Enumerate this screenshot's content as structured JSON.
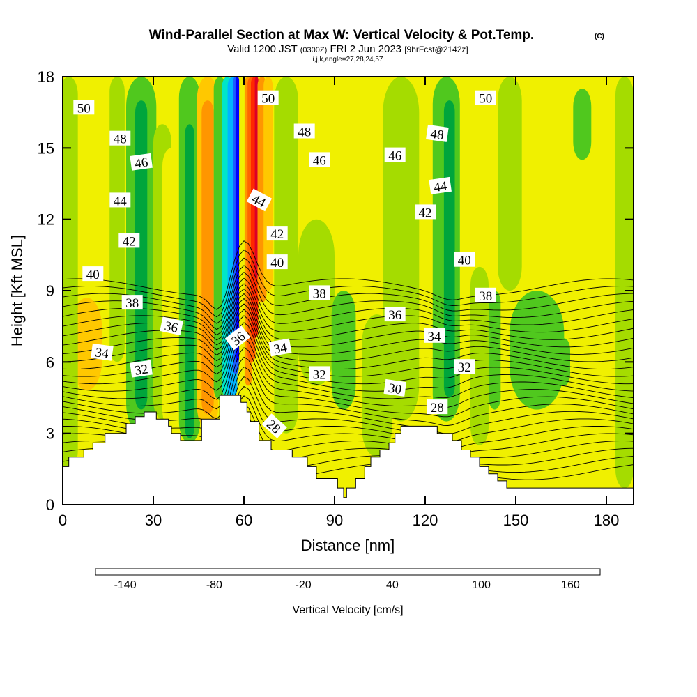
{
  "chart_data": {
    "type": "heatmap",
    "title": "Wind-Parallel Section at Max W: Vertical Velocity & Pot.Temp.",
    "title_mark": "(C)",
    "subtitle_parts": [
      "Valid 1200 JST",
      "(0300Z)",
      "FRI 2 Jun 2023",
      "[9hrFcst@2142z]"
    ],
    "subtitle2": "i,j,k,angle=27,28,24,57",
    "xlabel": "Distance [nm]",
    "ylabel": "Height [Kft MSL]",
    "xlim": [
      0,
      189
    ],
    "ylim": [
      0,
      18
    ],
    "x_ticks": [
      0,
      30,
      60,
      90,
      120,
      150,
      180
    ],
    "y_ticks": [
      0,
      3,
      6,
      9,
      12,
      15,
      18
    ],
    "colorbar": {
      "label": "Vertical Velocity [cm/s]",
      "min": -160,
      "max": 180,
      "tick_labels": [
        "-140",
        "-80",
        "-20",
        "40",
        "100",
        "160"
      ],
      "tick_values": [
        -140,
        -80,
        -20,
        40,
        100,
        160
      ],
      "colors": [
        "#0000ff",
        "#1a5fff",
        "#00b4ff",
        "#00e6c8",
        "#00c878",
        "#00a53c",
        "#50c81e",
        "#a5dc00",
        "#f0f000",
        "#ffc800",
        "#ff9600",
        "#ff6400",
        "#ff2800",
        "#dc0028",
        "#aa0055",
        "#78008c"
      ]
    },
    "terrain": {
      "x": [
        0,
        2,
        2,
        7,
        7,
        10,
        10,
        14,
        14,
        21,
        21,
        24,
        24,
        27,
        27,
        30,
        30,
        31,
        31,
        35,
        35,
        36,
        36,
        39,
        39,
        46,
        46,
        52,
        52,
        59,
        59,
        61,
        61,
        62,
        62,
        65,
        65,
        69,
        69,
        76,
        76,
        81,
        81,
        84,
        84,
        91,
        91,
        93,
        93,
        94,
        94,
        97,
        97,
        100,
        100,
        102,
        102,
        105,
        105,
        108,
        108,
        110,
        110,
        112,
        112,
        114,
        114,
        118,
        118,
        124,
        124,
        129,
        129,
        132,
        132,
        135,
        135,
        138,
        138,
        141,
        141,
        144,
        144,
        147,
        147,
        151,
        151,
        189
      ],
      "y": [
        1.6,
        1.6,
        2.0,
        2.0,
        2.3,
        2.3,
        2.6,
        2.6,
        3.0,
        3.0,
        3.4,
        3.4,
        3.7,
        3.7,
        3.9,
        3.9,
        3.9,
        3.9,
        3.6,
        3.6,
        3.3,
        3.3,
        3.0,
        3.0,
        2.7,
        2.7,
        3.6,
        3.6,
        4.6,
        4.6,
        4.3,
        4.3,
        3.9,
        3.9,
        3.5,
        3.5,
        2.7,
        2.7,
        2.3,
        2.3,
        2.0,
        2.0,
        1.6,
        1.6,
        1.1,
        1.1,
        0.7,
        0.7,
        0.3,
        0.3,
        0.7,
        0.7,
        1.1,
        1.1,
        1.6,
        1.6,
        2.0,
        2.0,
        2.3,
        2.3,
        2.6,
        2.6,
        3.0,
        3.0,
        3.3,
        3.3,
        3.3,
        3.3,
        3.3,
        3.3,
        3.0,
        3.0,
        2.7,
        2.7,
        2.3,
        2.3,
        2.0,
        2.0,
        1.6,
        1.6,
        1.3,
        1.3,
        1.0,
        1.0,
        0.7,
        0.7,
        0.7,
        0.7
      ]
    },
    "isentrope_levels": [
      26,
      28,
      30,
      32,
      34,
      36,
      38,
      40,
      42,
      44,
      46,
      48,
      50
    ],
    "contour_labels": [
      {
        "text": "50",
        "x": 7,
        "y": 16.7,
        "angle": 0
      },
      {
        "text": "48",
        "x": 19,
        "y": 15.4,
        "angle": 0
      },
      {
        "text": "46",
        "x": 26,
        "y": 14.4,
        "angle": 8
      },
      {
        "text": "44",
        "x": 19,
        "y": 12.8,
        "angle": 0
      },
      {
        "text": "42",
        "x": 22,
        "y": 11.1,
        "angle": 0
      },
      {
        "text": "40",
        "x": 10,
        "y": 9.7,
        "angle": 0
      },
      {
        "text": "38",
        "x": 23,
        "y": 8.5,
        "angle": 0
      },
      {
        "text": "36",
        "x": 36,
        "y": 7.5,
        "angle": -12
      },
      {
        "text": "34",
        "x": 13,
        "y": 6.4,
        "angle": -8
      },
      {
        "text": "32",
        "x": 26,
        "y": 5.7,
        "angle": 8
      },
      {
        "text": "50",
        "x": 68,
        "y": 17.1,
        "angle": 0
      },
      {
        "text": "48",
        "x": 80,
        "y": 15.7,
        "angle": 0
      },
      {
        "text": "46",
        "x": 85,
        "y": 14.5,
        "angle": 0
      },
      {
        "text": "44",
        "x": 65,
        "y": 12.8,
        "angle": -28
      },
      {
        "text": "42",
        "x": 71,
        "y": 11.4,
        "angle": 0
      },
      {
        "text": "40",
        "x": 71,
        "y": 10.2,
        "angle": 0
      },
      {
        "text": "38",
        "x": 85,
        "y": 8.9,
        "angle": 0
      },
      {
        "text": "36",
        "x": 58,
        "y": 7.0,
        "angle": 38
      },
      {
        "text": "34",
        "x": 72,
        "y": 6.6,
        "angle": 10
      },
      {
        "text": "32",
        "x": 85,
        "y": 5.5,
        "angle": 0
      },
      {
        "text": "28",
        "x": 70,
        "y": 3.3,
        "angle": -42
      },
      {
        "text": "50",
        "x": 140,
        "y": 17.1,
        "angle": 0
      },
      {
        "text": "48",
        "x": 124,
        "y": 15.6,
        "angle": -8
      },
      {
        "text": "46",
        "x": 110,
        "y": 14.7,
        "angle": 0
      },
      {
        "text": "44",
        "x": 125,
        "y": 13.4,
        "angle": 8
      },
      {
        "text": "42",
        "x": 120,
        "y": 12.3,
        "angle": 0
      },
      {
        "text": "40",
        "x": 133,
        "y": 10.3,
        "angle": 0
      },
      {
        "text": "38",
        "x": 140,
        "y": 8.8,
        "angle": 0
      },
      {
        "text": "36",
        "x": 110,
        "y": 8.0,
        "angle": 0
      },
      {
        "text": "34",
        "x": 123,
        "y": 7.1,
        "angle": 0
      },
      {
        "text": "32",
        "x": 133,
        "y": 5.8,
        "angle": 0
      },
      {
        "text": "30",
        "x": 110,
        "y": 4.9,
        "angle": -8
      },
      {
        "text": "28",
        "x": 124,
        "y": 4.1,
        "angle": 0
      }
    ],
    "features": [
      {
        "name": "downdraft-core",
        "x_center": 56.5,
        "w_min": -140
      },
      {
        "name": "updraft-core",
        "x_center": 61.5,
        "w_max": 120
      },
      {
        "name": "secondary-updraft",
        "x_center": 48,
        "w_max": 90
      },
      {
        "name": "weak-descent-band",
        "x_center": 26,
        "w_min": -40
      },
      {
        "name": "weak-descent-band",
        "x_center": 42,
        "w_min": -30
      },
      {
        "name": "weak-descent-band",
        "x_center": 128,
        "w_min": -30
      }
    ],
    "grid": false
  }
}
